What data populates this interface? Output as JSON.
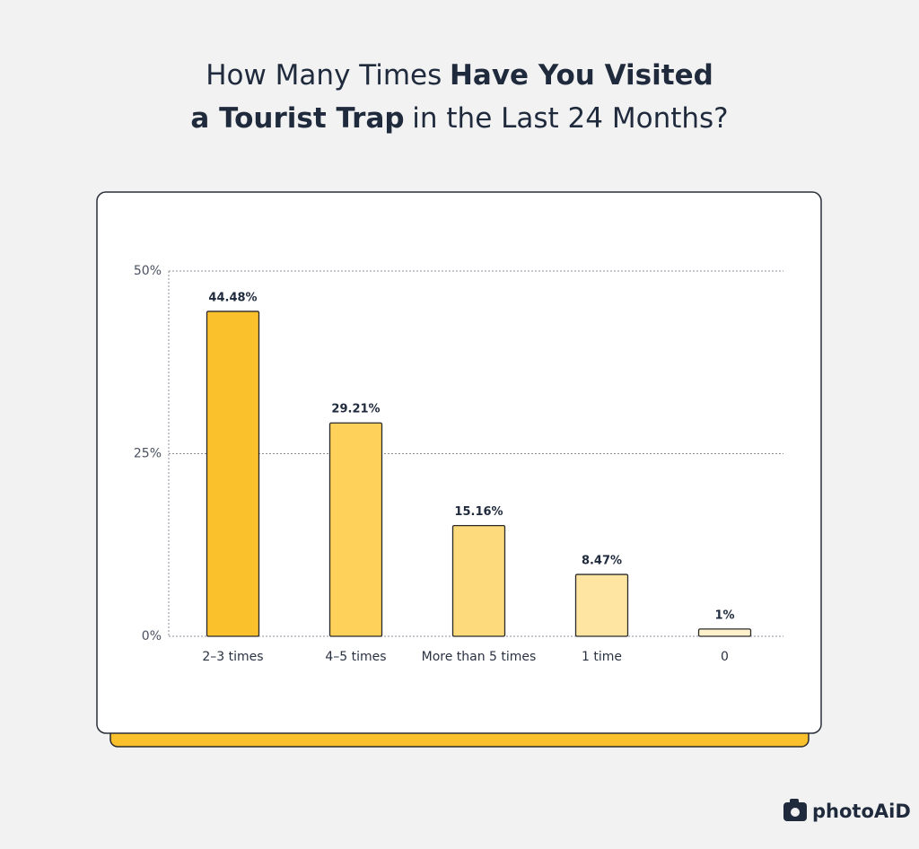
{
  "chart_data": {
    "type": "bar",
    "title": [
      [
        {
          "text": "How Many Times",
          "bold": false
        },
        {
          "text": "Have You Visited",
          "bold": true
        }
      ],
      [
        {
          "text": "a Tourist Trap",
          "bold": true
        },
        {
          "text": "in the Last 24 Months?",
          "bold": false
        }
      ]
    ],
    "categories": [
      "2–3 times",
      "4–5 times",
      "More than 5 times",
      "1 time",
      "0"
    ],
    "values": [
      44.48,
      29.21,
      15.16,
      8.47,
      1
    ],
    "value_labels": [
      "44.48%",
      "29.21%",
      "15.16%",
      "8.47%",
      "1%"
    ],
    "colors": [
      "#fbc12d",
      "#fdd15a",
      "#fdda7b",
      "#fee6a2",
      "#fef2cc"
    ],
    "ylim": [
      0,
      50
    ],
    "yticks": [
      {
        "value": 0,
        "label": "0%"
      },
      {
        "value": 25,
        "label": "25%"
      },
      {
        "value": 50,
        "label": "50%"
      }
    ],
    "grid": true
  },
  "brand": "photoAiD"
}
